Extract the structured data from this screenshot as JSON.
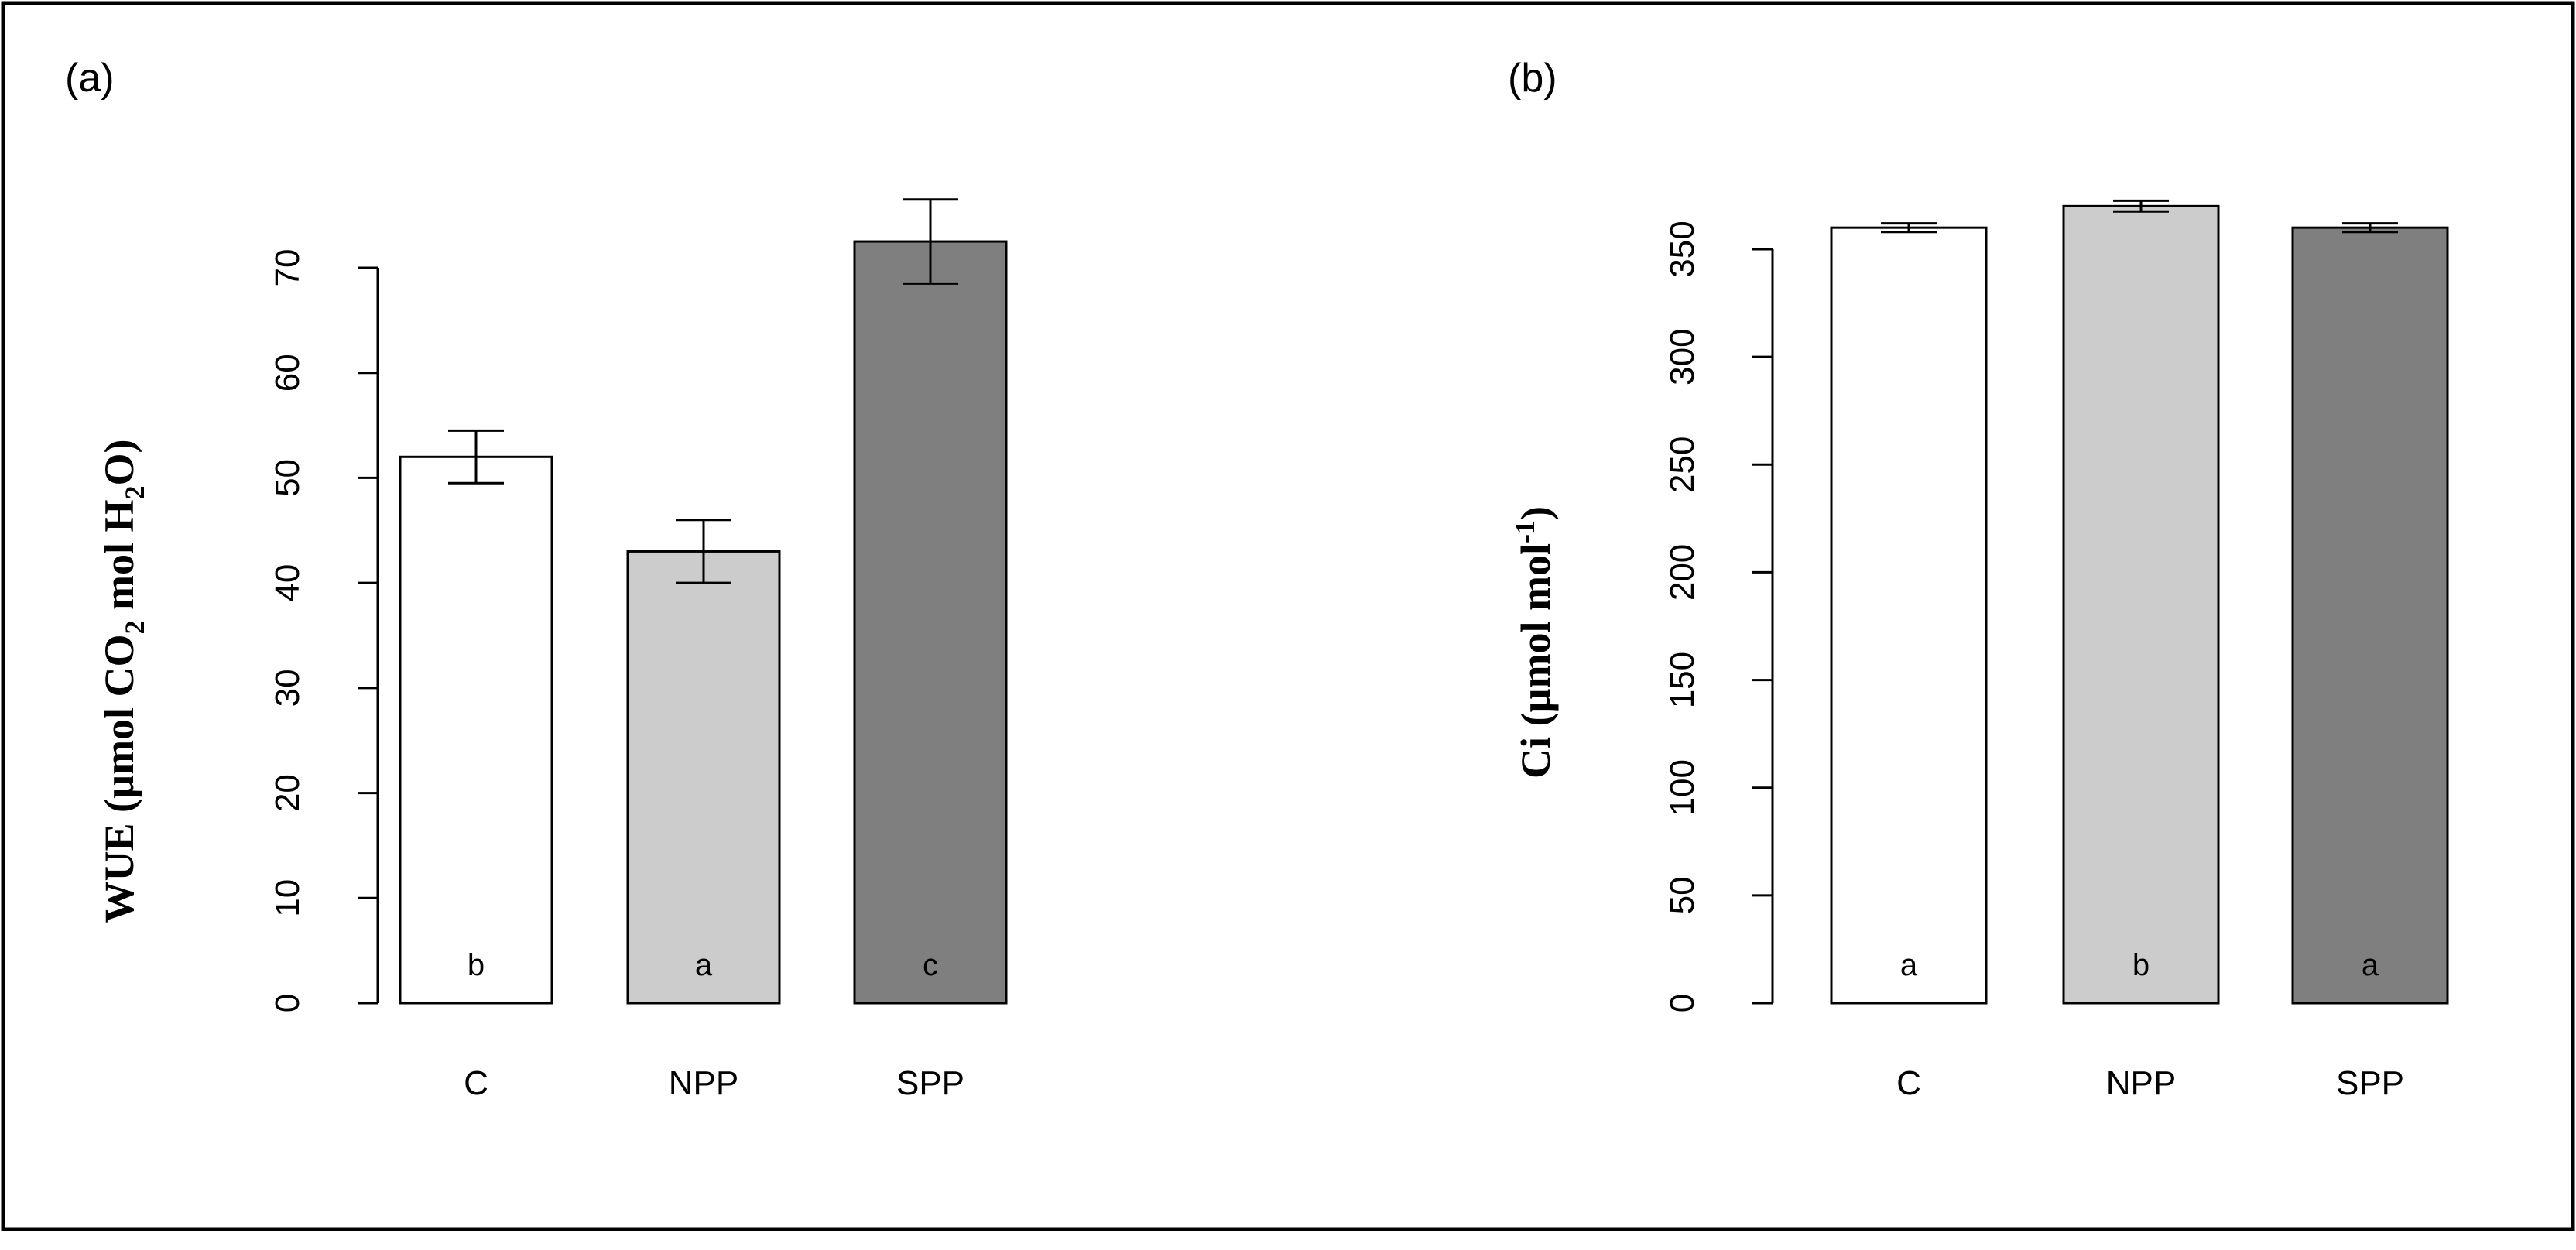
{
  "colors": {
    "border": "#000000",
    "background": "#ffffff",
    "bar_C": "#ffffff",
    "bar_NPP": "#cccccc",
    "bar_SPP": "#7f7f7f"
  },
  "chart_data": [
    {
      "type": "bar",
      "panel_label": "(a)",
      "title": "",
      "xlabel": "",
      "ylabel": "WUE (µmol CO2 mol H2O)",
      "ylabel_parts": {
        "a": "WUE (µmol CO",
        "b": "2",
        "c": " mol H",
        "d": "2",
        "e": "O)"
      },
      "categories": [
        "C",
        "NPP",
        "SPP"
      ],
      "values": [
        52,
        43,
        72.5
      ],
      "errors": [
        2.5,
        3,
        4
      ],
      "significance_letters": [
        "b",
        "a",
        "c"
      ],
      "ylim": [
        0,
        70
      ],
      "yticks": [
        0,
        10,
        20,
        30,
        40,
        50,
        60,
        70
      ],
      "ytick_labels": [
        "0",
        "10",
        "20",
        "30",
        "40",
        "50",
        "60",
        "70"
      ],
      "grid": false
    },
    {
      "type": "bar",
      "panel_label": "(b)",
      "title": "",
      "xlabel": "",
      "ylabel": "Ci (µmol mol-1)",
      "ylabel_parts": {
        "a": "Ci (µmol mol",
        "b": "-1",
        "c": ")"
      },
      "categories": [
        "C",
        "NPP",
        "SPP"
      ],
      "values": [
        360,
        370,
        360
      ],
      "errors": [
        2,
        2.5,
        2
      ],
      "significance_letters": [
        "a",
        "b",
        "a"
      ],
      "ylim": [
        0,
        350
      ],
      "yticks": [
        0,
        50,
        100,
        150,
        200,
        250,
        300,
        350
      ],
      "ytick_labels": [
        "0",
        "50",
        "100",
        "150",
        "200",
        "250",
        "300",
        "350"
      ],
      "grid": false
    }
  ]
}
